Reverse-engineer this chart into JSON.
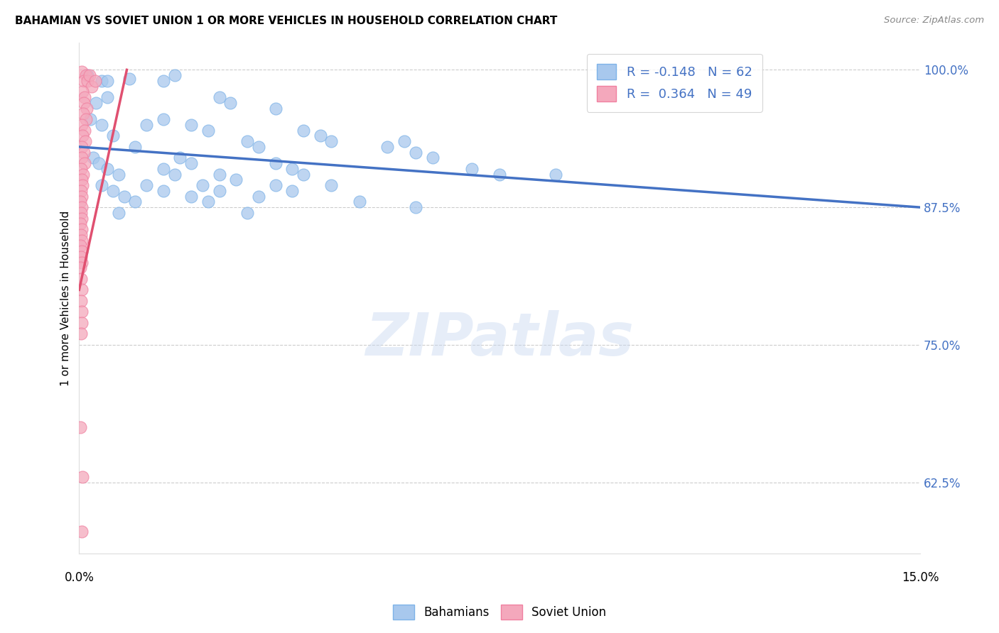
{
  "title": "BAHAMIAN VS SOVIET UNION 1 OR MORE VEHICLES IN HOUSEHOLD CORRELATION CHART",
  "source": "Source: ZipAtlas.com",
  "ylabel": "1 or more Vehicles in Household",
  "y_ticks": [
    62.5,
    75.0,
    87.5,
    100.0
  ],
  "y_tick_labels": [
    "62.5%",
    "75.0%",
    "87.5%",
    "100.0%"
  ],
  "x_ticks": [
    0.0,
    3.75,
    7.5,
    11.25,
    15.0
  ],
  "xlim": [
    0.0,
    15.0
  ],
  "ylim": [
    56.0,
    102.5
  ],
  "blue_color": "#A8C8ED",
  "pink_color": "#F4A8BC",
  "blue_edge_color": "#7EB3E8",
  "pink_edge_color": "#F080A0",
  "blue_line_color": "#4472C4",
  "pink_line_color": "#E05070",
  "tick_label_color": "#4472C4",
  "legend_blue_label": "R = -0.148   N = 62",
  "legend_pink_label": "R =  0.364   N = 49",
  "watermark": "ZIPatlas",
  "blue_scatter": [
    [
      0.15,
      99.5
    ],
    [
      0.4,
      99.0
    ],
    [
      0.5,
      99.0
    ],
    [
      0.9,
      99.2
    ],
    [
      1.5,
      99.0
    ],
    [
      1.7,
      99.5
    ],
    [
      0.3,
      97.0
    ],
    [
      0.5,
      97.5
    ],
    [
      2.5,
      97.5
    ],
    [
      2.7,
      97.0
    ],
    [
      3.5,
      96.5
    ],
    [
      0.2,
      95.5
    ],
    [
      0.4,
      95.0
    ],
    [
      1.2,
      95.0
    ],
    [
      1.5,
      95.5
    ],
    [
      2.0,
      95.0
    ],
    [
      2.3,
      94.5
    ],
    [
      0.6,
      94.0
    ],
    [
      4.0,
      94.5
    ],
    [
      4.3,
      94.0
    ],
    [
      3.0,
      93.5
    ],
    [
      3.2,
      93.0
    ],
    [
      1.0,
      93.0
    ],
    [
      4.5,
      93.5
    ],
    [
      5.5,
      93.0
    ],
    [
      5.8,
      93.5
    ],
    [
      0.25,
      92.0
    ],
    [
      0.35,
      91.5
    ],
    [
      1.8,
      92.0
    ],
    [
      2.0,
      91.5
    ],
    [
      3.5,
      91.5
    ],
    [
      3.8,
      91.0
    ],
    [
      6.0,
      92.5
    ],
    [
      6.3,
      92.0
    ],
    [
      0.5,
      91.0
    ],
    [
      0.7,
      90.5
    ],
    [
      1.5,
      91.0
    ],
    [
      1.7,
      90.5
    ],
    [
      2.5,
      90.5
    ],
    [
      2.8,
      90.0
    ],
    [
      4.0,
      90.5
    ],
    [
      7.0,
      91.0
    ],
    [
      7.5,
      90.5
    ],
    [
      0.4,
      89.5
    ],
    [
      0.6,
      89.0
    ],
    [
      1.2,
      89.5
    ],
    [
      1.5,
      89.0
    ],
    [
      2.2,
      89.5
    ],
    [
      2.5,
      89.0
    ],
    [
      3.5,
      89.5
    ],
    [
      3.8,
      89.0
    ],
    [
      4.5,
      89.5
    ],
    [
      8.5,
      90.5
    ],
    [
      0.8,
      88.5
    ],
    [
      1.0,
      88.0
    ],
    [
      2.0,
      88.5
    ],
    [
      2.3,
      88.0
    ],
    [
      3.2,
      88.5
    ],
    [
      5.0,
      88.0
    ],
    [
      0.7,
      87.0
    ],
    [
      3.0,
      87.0
    ],
    [
      6.0,
      87.5
    ]
  ],
  "pink_scatter": [
    [
      0.05,
      99.8
    ],
    [
      0.12,
      99.5
    ],
    [
      0.08,
      99.0
    ],
    [
      0.15,
      99.0
    ],
    [
      0.18,
      99.5
    ],
    [
      0.22,
      98.5
    ],
    [
      0.28,
      99.0
    ],
    [
      0.06,
      98.0
    ],
    [
      0.1,
      97.5
    ],
    [
      0.08,
      97.0
    ],
    [
      0.14,
      96.5
    ],
    [
      0.07,
      96.0
    ],
    [
      0.12,
      95.5
    ],
    [
      0.05,
      95.0
    ],
    [
      0.09,
      94.5
    ],
    [
      0.06,
      94.0
    ],
    [
      0.11,
      93.5
    ],
    [
      0.04,
      93.0
    ],
    [
      0.08,
      92.5
    ],
    [
      0.05,
      92.0
    ],
    [
      0.09,
      91.5
    ],
    [
      0.03,
      91.0
    ],
    [
      0.07,
      90.5
    ],
    [
      0.04,
      90.0
    ],
    [
      0.06,
      89.5
    ],
    [
      0.03,
      89.0
    ],
    [
      0.05,
      88.5
    ],
    [
      0.02,
      88.0
    ],
    [
      0.04,
      87.5
    ],
    [
      0.03,
      87.0
    ],
    [
      0.05,
      86.5
    ],
    [
      0.02,
      86.0
    ],
    [
      0.04,
      85.5
    ],
    [
      0.03,
      85.0
    ],
    [
      0.05,
      84.5
    ],
    [
      0.02,
      84.0
    ],
    [
      0.04,
      83.5
    ],
    [
      0.03,
      83.0
    ],
    [
      0.05,
      82.5
    ],
    [
      0.02,
      82.0
    ],
    [
      0.03,
      81.0
    ],
    [
      0.04,
      80.0
    ],
    [
      0.03,
      79.0
    ],
    [
      0.05,
      78.0
    ],
    [
      0.04,
      77.0
    ],
    [
      0.02,
      67.5
    ],
    [
      0.06,
      63.0
    ],
    [
      0.04,
      58.0
    ],
    [
      0.03,
      76.0
    ]
  ],
  "blue_trend_x": [
    0.0,
    15.0
  ],
  "blue_trend_y": [
    93.0,
    87.5
  ],
  "pink_trend_x": [
    0.0,
    0.85
  ],
  "pink_trend_y": [
    80.0,
    100.0
  ],
  "background_color": "#FFFFFF",
  "grid_color": "#CCCCCC"
}
